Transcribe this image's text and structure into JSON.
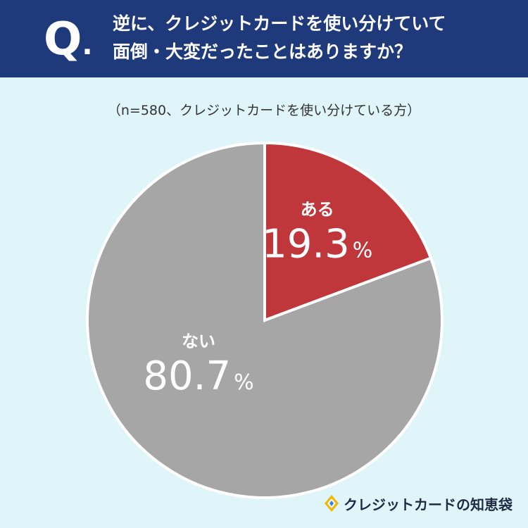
{
  "header": {
    "q_letter": "Q",
    "q_dot": ".",
    "question_line1": "逆に、クレジットカードを使い分けていて",
    "question_line2": "面倒・大変だったことはありますか？"
  },
  "note": "（n=580、クレジットカードを使い分けている方）",
  "chart_data": {
    "type": "pie",
    "title": "逆に、クレジットカードを使い分けていて面倒・大変だったことはありますか？",
    "subtitle": "（n=580、クレジットカードを使い分けている方）",
    "categories": [
      "ある",
      "ない"
    ],
    "values": [
      19.3,
      80.7
    ],
    "unit": "%",
    "labels": [
      {
        "name": "ある",
        "value_text": "19.3",
        "unit": "%"
      },
      {
        "name": "ない",
        "value_text": "80.7",
        "unit": "%"
      }
    ],
    "colors": [
      "#c0373b",
      "#a6a6a6"
    ],
    "start": "12 o'clock, clockwise",
    "legend": "none"
  },
  "brand": {
    "name": "クレジットカードの知恵袋",
    "icon": "diamond-logo-icon"
  },
  "colors": {
    "header_bg": "#1f3a7a",
    "page_bg": "#dff5fa",
    "slice_a": "#c0373b",
    "slice_b": "#a6a6a6"
  }
}
